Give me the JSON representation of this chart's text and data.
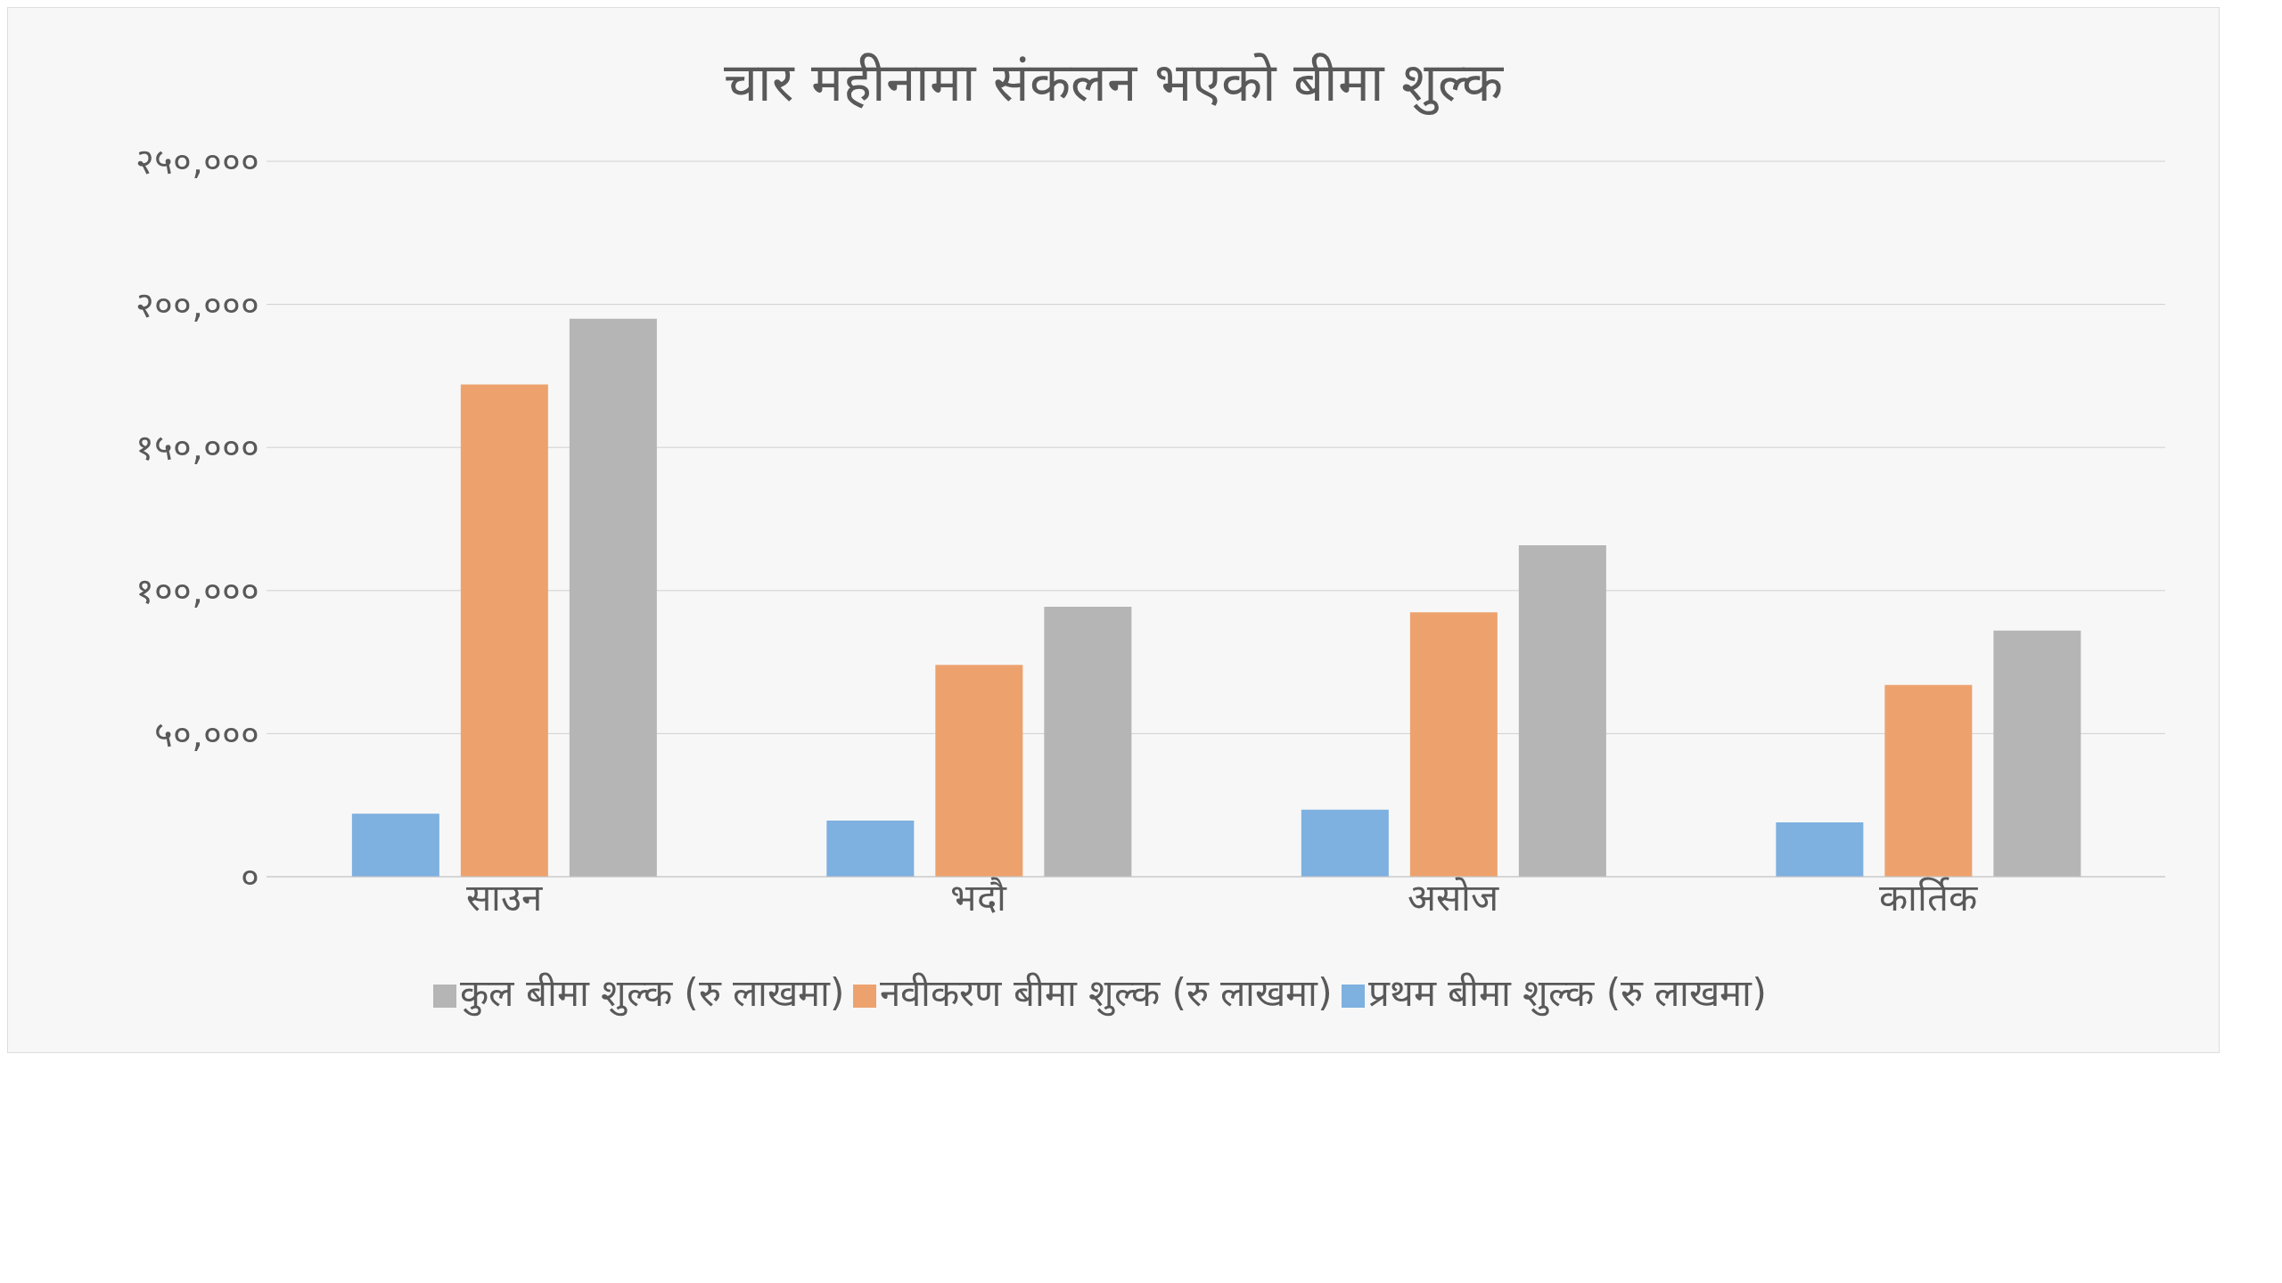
{
  "chart_data": {
    "type": "bar",
    "title": "चार महीनामा संकलन भएको बीमा शुल्क",
    "categories": [
      "साउन",
      "भदौ",
      "असोज",
      "कार्तिक"
    ],
    "series": [
      {
        "name": "प्रथम बीमा शुल्क (रु लाखमा)",
        "color": "#7eb0e0",
        "values": [
          22000,
          19600,
          23400,
          19000
        ]
      },
      {
        "name": "नवीकरण बीमा शुल्क (रु लाखमा)",
        "color": "#eda26e",
        "values": [
          172000,
          74000,
          92400,
          67000
        ]
      },
      {
        "name": "कुल बीमा शुल्क (रु लाखमा)",
        "color": "#b5b5b5",
        "values": [
          195000,
          94300,
          115800,
          86000
        ]
      }
    ],
    "ylim": [
      0,
      250000
    ],
    "yticks": [
      {
        "value": 0,
        "label": "०"
      },
      {
        "value": 50000,
        "label": "५०,०००"
      },
      {
        "value": 100000,
        "label": "१००,०००"
      },
      {
        "value": 150000,
        "label": "१५०,०००"
      },
      {
        "value": 200000,
        "label": "२००,०००"
      },
      {
        "value": 250000,
        "label": "२५०,०००"
      }
    ],
    "grid": "y",
    "legend": "bottom"
  }
}
